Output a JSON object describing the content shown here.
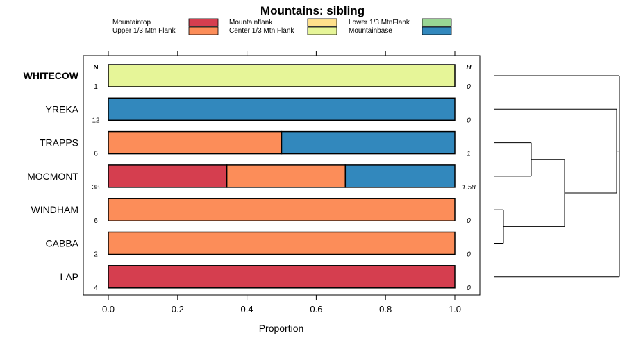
{
  "chart_data": {
    "type": "bar",
    "orientation": "horizontal",
    "stacked": true,
    "title": "Mountains: sibling",
    "xlabel": "Proportion",
    "xlim": [
      0,
      1
    ],
    "xticks": [
      "0.0",
      "0.2",
      "0.4",
      "0.6",
      "0.8",
      "1.0"
    ],
    "n_header": "N",
    "h_header": "H",
    "legend": [
      {
        "label": "Mountaintop",
        "color": "#d53e4f"
      },
      {
        "label": "Upper 1/3 Mtn Flank",
        "color": "#fc8d59"
      },
      {
        "label": "Mountainflank",
        "color": "#fee08b"
      },
      {
        "label": "Center 1/3 Mtn Flank",
        "color": "#e6f598"
      },
      {
        "label": "Lower 1/3 MtnFlank",
        "color": "#99d594"
      },
      {
        "label": "Mountainbase",
        "color": "#3288bd"
      }
    ],
    "categories": [
      "WHITECOW",
      "YREKA",
      "TRAPPS",
      "MOCMONT",
      "WINDHAM",
      "CABBA",
      "LAP"
    ],
    "bold_categories": [
      "WHITECOW"
    ],
    "n": [
      "1",
      "12",
      "6",
      "38",
      "6",
      "2",
      "4"
    ],
    "h": [
      "0",
      "0",
      "1",
      "1.58",
      "0",
      "0",
      "0"
    ],
    "series": [
      {
        "name": "Mountaintop",
        "values": [
          0,
          0,
          0,
          0.342,
          0,
          0,
          1
        ]
      },
      {
        "name": "Upper 1/3 Mtn Flank",
        "values": [
          0,
          0,
          0.5,
          0.342,
          1,
          1,
          0
        ]
      },
      {
        "name": "Mountainflank",
        "values": [
          0,
          0,
          0,
          0,
          0,
          0,
          0
        ]
      },
      {
        "name": "Center 1/3 Mtn Flank",
        "values": [
          1,
          0,
          0,
          0,
          0,
          0,
          0
        ]
      },
      {
        "name": "Lower 1/3 MtnFlank",
        "values": [
          0,
          0,
          0,
          0,
          0,
          0,
          0
        ]
      },
      {
        "name": "Mountainbase",
        "values": [
          0,
          1,
          0.5,
          0.316,
          0,
          0,
          0
        ]
      }
    ],
    "dendrogram": "hierarchical clustering of rows"
  }
}
